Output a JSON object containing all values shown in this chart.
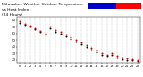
{
  "title": "Milwaukee Weather Outdoor Temperature",
  "title2": "vs Heat Index",
  "title3": "(24 Hours)",
  "title_fontsize": 3.2,
  "background_color": "#ffffff",
  "grid_color": "#888888",
  "ylabel_fontsize": 2.8,
  "xlabel_fontsize": 2.5,
  "xlim": [
    0,
    23
  ],
  "ylim": [
    15,
    85
  ],
  "yticks": [
    20,
    30,
    40,
    50,
    60,
    70,
    80
  ],
  "xticks": [
    0,
    1,
    2,
    3,
    4,
    5,
    6,
    7,
    8,
    9,
    10,
    11,
    12,
    13,
    14,
    15,
    16,
    17,
    18,
    19,
    20,
    21,
    22,
    23
  ],
  "temp_color": "#dd0000",
  "heat_index_color": "#000000",
  "legend_blue": "#0000cc",
  "legend_red": "#ff0000",
  "temp_x": [
    0,
    1,
    2,
    3,
    4,
    5,
    6,
    7,
    8,
    9,
    10,
    11,
    12,
    13,
    14,
    15,
    16,
    17,
    18,
    19,
    20,
    21,
    22,
    23
  ],
  "temp_y": [
    78,
    75,
    72,
    68,
    64,
    60,
    70,
    65,
    62,
    58,
    54,
    50,
    46,
    42,
    38,
    34,
    30,
    28,
    30,
    26,
    23,
    22,
    21,
    20
  ],
  "heat_x": [
    0,
    1,
    2,
    3,
    4,
    5,
    6,
    7,
    8,
    9,
    10,
    11,
    12,
    13,
    14,
    15,
    16,
    17,
    18,
    19,
    20,
    21,
    22,
    23
  ],
  "heat_y": [
    76,
    73,
    70,
    66,
    62,
    58,
    68,
    63,
    60,
    56,
    52,
    48,
    44,
    40,
    36,
    32,
    28,
    26,
    28,
    24,
    21,
    20,
    19,
    18
  ],
  "dot_size": 2.0
}
